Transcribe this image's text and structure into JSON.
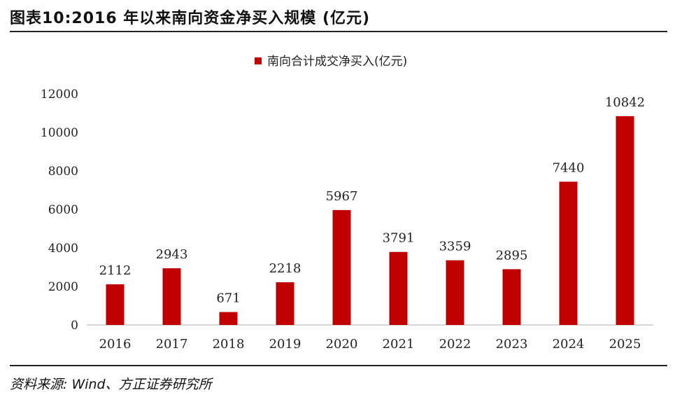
{
  "title": "图表10:2016 年以来南向资金净买入规模 (亿元)",
  "source": "资料来源: Wind、方正证券研究所",
  "colors": {
    "bar": "#C00000",
    "axis": "#bfbfbf",
    "text": "#222222"
  },
  "chart_data": {
    "type": "bar",
    "categories": [
      "2016",
      "2017",
      "2018",
      "2019",
      "2020",
      "2021",
      "2022",
      "2023",
      "2024",
      "2025"
    ],
    "series": [
      {
        "name": "南向合计成交净买入(亿元)",
        "values": [
          2112,
          2943,
          671,
          2218,
          5967,
          3791,
          3359,
          2895,
          7440,
          10842
        ]
      }
    ],
    "value_labels": [
      "2112",
      "2943",
      "671",
      "2218",
      "5967",
      "3791",
      "3359",
      "2895",
      "7440",
      "10842"
    ],
    "yticks": [
      "0",
      "2000",
      "4000",
      "6000",
      "8000",
      "10000",
      "12000"
    ],
    "ylim": [
      0,
      12000
    ],
    "grid": false,
    "legend_position": "top-center"
  }
}
